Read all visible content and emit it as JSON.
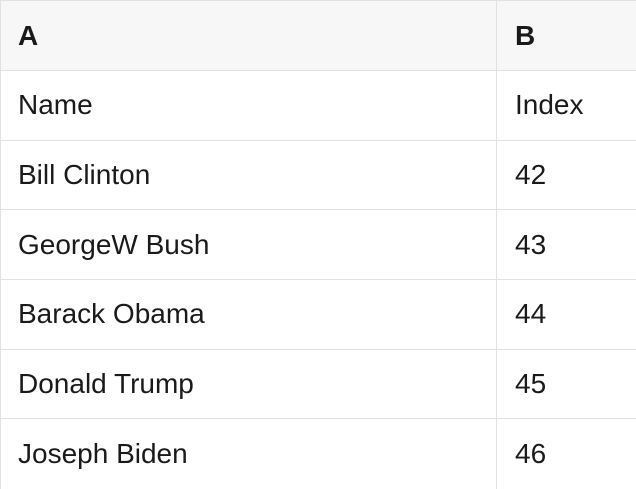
{
  "table": {
    "columns": [
      {
        "id": "A",
        "label": "A"
      },
      {
        "id": "B",
        "label": "B"
      }
    ],
    "rows": [
      {
        "a": "Name",
        "b": "Index"
      },
      {
        "a": "Bill Clinton",
        "b": "42"
      },
      {
        "a": "GeorgeW Bush",
        "b": "43"
      },
      {
        "a": "Barack Obama",
        "b": "44"
      },
      {
        "a": "Donald Trump",
        "b": "45"
      },
      {
        "a": "Joseph Biden",
        "b": "46"
      }
    ]
  },
  "colors": {
    "header_background": "#f7f7f7",
    "row_background": "#ffffff",
    "border": "#e1e1e1",
    "text": "#1a1a1a"
  }
}
